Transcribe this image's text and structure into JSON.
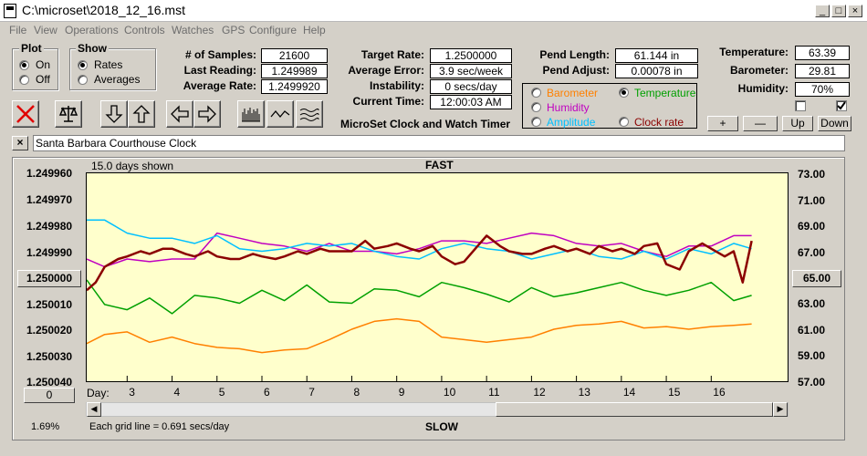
{
  "window": {
    "title": "C:\\microset\\2018_12_16.mst"
  },
  "menu": [
    "File",
    "View",
    "Operations",
    "Controls",
    "Watches",
    "GPS",
    "Configure",
    "Help"
  ],
  "plot_group": {
    "title": "Plot",
    "options": [
      "On",
      "Off"
    ],
    "selected": "On"
  },
  "show_group": {
    "title": "Show",
    "options": [
      "Rates",
      "Averages"
    ],
    "selected": "Rates"
  },
  "stats": [
    {
      "label": "# of Samples:",
      "value": "21600"
    },
    {
      "label": "Last Reading:",
      "value": "1.249989"
    },
    {
      "label": "Average Rate:",
      "value": "1.2499920"
    }
  ],
  "timing": [
    {
      "label": "Target Rate:",
      "value": "1.2500000"
    },
    {
      "label": "Average Error:",
      "value": "3.9 sec/week"
    },
    {
      "label": "Instability:",
      "value": "0 secs/day"
    },
    {
      "label": "Current Time:",
      "value": "12:00:03 AM"
    }
  ],
  "pendulum": [
    {
      "label": "Pend Length:",
      "value": "61.144 in"
    },
    {
      "label": "Pend Adjust:",
      "value": "0.00078 in"
    }
  ],
  "environment": [
    {
      "label": "Temperature:",
      "value": "63.39"
    },
    {
      "label": "Barometer:",
      "value": "29.81"
    },
    {
      "label": "Humidity:",
      "value": "70%"
    }
  ],
  "sensor_select": {
    "options": [
      {
        "label": "Barometer",
        "color": "#ff8000",
        "selected": false
      },
      {
        "label": "Temperature",
        "color": "#00a000",
        "selected": true
      },
      {
        "label": "Humidity",
        "color": "#c000c0",
        "selected": false
      },
      {
        "label": "Amplitude",
        "color": "#00c0ff",
        "selected": false
      },
      {
        "label": "Clock rate",
        "color": "#8b0000",
        "selected": false
      }
    ]
  },
  "app_title": "MicroSet Clock and Watch Timer",
  "checkboxes": [
    {
      "checked": false
    },
    {
      "checked": true
    }
  ],
  "scale_buttons": [
    "+",
    "—",
    "Up",
    "Down"
  ],
  "clock_name": "Santa Barbara Courthouse Clock",
  "close_label": "×",
  "icons": [
    "red-x-icon",
    "balance-scale-icon",
    "arrow-down-icon",
    "arrow-up-icon",
    "arrow-left-icon",
    "arrow-right-icon",
    "bar-plot-icon",
    "wave-plot-icon",
    "multi-wave-icon"
  ],
  "chart_header": {
    "days_shown": "15.0 days shown",
    "top_label": "FAST",
    "bottom_label": "SLOW",
    "grid_note": "Each grid line = 0.691 secs/day",
    "percent": "1.69%",
    "day_label": "Day:"
  },
  "chart_data": {
    "type": "line",
    "y_left_ticks": [
      "1.249960",
      "1.249970",
      "1.249980",
      "1.249990",
      "1.250000",
      "1.250010",
      "1.250020",
      "1.250030",
      "1.250040"
    ],
    "y_left_range": [
      1.24996,
      1.25004
    ],
    "y_left_center_button": "1.250000",
    "y_right_ticks": [
      "73.00",
      "71.00",
      "69.00",
      "67.00",
      "65.00",
      "63.00",
      "61.00",
      "59.00",
      "57.00"
    ],
    "y_right_range": [
      57,
      73
    ],
    "y_right_center_button": "65.00",
    "left_offset_button": "0",
    "x_ticks": [
      "3",
      "4",
      "5",
      "6",
      "7",
      "8",
      "9",
      "10",
      "11",
      "12",
      "13",
      "14",
      "15",
      "16"
    ],
    "x_range": [
      2.1,
      17.7
    ],
    "series": [
      {
        "name": "Barometer",
        "color": "#ff8000",
        "axis": "right",
        "x": [
          2.1,
          2.5,
          3,
          3.5,
          4,
          4.5,
          5,
          5.5,
          6,
          6.5,
          7,
          7.5,
          8,
          8.5,
          9,
          9.5,
          10,
          10.5,
          11,
          11.5,
          12,
          12.5,
          13,
          13.5,
          14,
          14.5,
          15,
          15.5,
          16,
          16.5,
          16.9
        ],
        "y": [
          59.9,
          60.6,
          60.8,
          60.0,
          60.4,
          59.9,
          59.6,
          59.5,
          59.2,
          59.4,
          59.5,
          60.2,
          61.0,
          61.6,
          61.8,
          61.6,
          60.4,
          60.2,
          60.0,
          60.2,
          60.4,
          61.0,
          61.3,
          61.4,
          61.6,
          61.1,
          61.2,
          61.0,
          61.2,
          61.3,
          61.4
        ]
      },
      {
        "name": "Temperature",
        "color": "#00a000",
        "axis": "right",
        "x": [
          2.1,
          2.5,
          3,
          3.5,
          4,
          4.5,
          5,
          5.5,
          6,
          6.5,
          7,
          7.5,
          8,
          8.5,
          9,
          9.5,
          10,
          10.5,
          11,
          11.5,
          12,
          12.5,
          13,
          13.5,
          14,
          14.5,
          15,
          15.5,
          16,
          16.5,
          16.9
        ],
        "y": [
          64.8,
          62.9,
          62.5,
          63.4,
          62.2,
          63.6,
          63.4,
          63.0,
          64.0,
          63.2,
          64.4,
          63.1,
          63.0,
          64.1,
          64.0,
          63.5,
          64.6,
          64.2,
          63.7,
          63.1,
          64.2,
          63.5,
          63.8,
          64.2,
          64.6,
          64.0,
          63.6,
          64.0,
          64.6,
          63.2,
          63.6
        ]
      },
      {
        "name": "Humidity",
        "color": "#c000c0",
        "axis": "left",
        "x": [
          2.1,
          2.5,
          3,
          3.5,
          4,
          4.5,
          5,
          5.5,
          6,
          6.5,
          7,
          7.5,
          8,
          8.5,
          9,
          9.5,
          10,
          10.5,
          11,
          11.5,
          12,
          12.5,
          13,
          13.5,
          14,
          14.5,
          15,
          15.5,
          16,
          16.5,
          16.9
        ],
        "y": [
          1.249993,
          1.249996,
          1.249993,
          1.249994,
          1.249993,
          1.249993,
          1.249983,
          1.249985,
          1.249987,
          1.249988,
          1.24999,
          1.249987,
          1.24999,
          1.24999,
          1.249991,
          1.249989,
          1.249986,
          1.249986,
          1.249987,
          1.249985,
          1.249983,
          1.249984,
          1.249987,
          1.249988,
          1.249987,
          1.24999,
          1.249992,
          1.249988,
          1.249988,
          1.249984,
          1.249984
        ]
      },
      {
        "name": "Amplitude",
        "color": "#00c0ff",
        "axis": "left",
        "x": [
          2.1,
          2.5,
          3,
          3.5,
          4,
          4.5,
          5,
          5.5,
          6,
          6.5,
          7,
          7.5,
          8,
          8.5,
          9,
          9.5,
          10,
          10.5,
          11,
          11.5,
          12,
          12.5,
          13,
          13.5,
          14,
          14.5,
          15,
          15.5,
          16,
          16.5,
          16.9
        ],
        "y": [
          1.249978,
          1.249978,
          1.249983,
          1.249985,
          1.249985,
          1.249987,
          1.249984,
          1.249989,
          1.24999,
          1.249989,
          1.249987,
          1.249988,
          1.249987,
          1.24999,
          1.249992,
          1.249993,
          1.249989,
          1.249987,
          1.249989,
          1.24999,
          1.249993,
          1.249991,
          1.249989,
          1.249992,
          1.249993,
          1.24999,
          1.249993,
          1.249989,
          1.249991,
          1.249987,
          1.249989
        ]
      },
      {
        "name": "Clock rate",
        "color": "#8b0000",
        "axis": "left",
        "x": [
          2.1,
          2.3,
          2.5,
          2.8,
          3,
          3.3,
          3.5,
          3.8,
          4,
          4.3,
          4.5,
          4.8,
          5,
          5.3,
          5.5,
          5.8,
          6,
          6.3,
          6.5,
          6.8,
          7,
          7.3,
          7.5,
          7.8,
          8,
          8.3,
          8.5,
          8.8,
          9,
          9.3,
          9.5,
          9.8,
          10,
          10.3,
          10.5,
          10.8,
          11,
          11.3,
          11.5,
          11.8,
          12,
          12.3,
          12.5,
          12.8,
          13,
          13.3,
          13.5,
          13.8,
          14,
          14.3,
          14.5,
          14.8,
          15,
          15.3,
          15.5,
          15.8,
          16,
          16.3,
          16.5,
          16.7,
          16.9
        ],
        "y": [
          1.250005,
          1.250002,
          1.249996,
          1.249993,
          1.249992,
          1.24999,
          1.249991,
          1.249989,
          1.249989,
          1.249991,
          1.249992,
          1.24999,
          1.249992,
          1.249993,
          1.249993,
          1.249991,
          1.249992,
          1.249993,
          1.249992,
          1.24999,
          1.249991,
          1.249989,
          1.24999,
          1.24999,
          1.24999,
          1.249986,
          1.249989,
          1.249988,
          1.249987,
          1.249989,
          1.24999,
          1.249988,
          1.249992,
          1.249995,
          1.249994,
          1.249988,
          1.249984,
          1.249988,
          1.24999,
          1.249991,
          1.249991,
          1.249989,
          1.249988,
          1.24999,
          1.249989,
          1.249991,
          1.249988,
          1.24999,
          1.249989,
          1.249991,
          1.249988,
          1.249987,
          1.249995,
          1.249997,
          1.24999,
          1.249987,
          1.249989,
          1.249992,
          1.24999,
          1.250002,
          1.249986
        ]
      }
    ]
  }
}
